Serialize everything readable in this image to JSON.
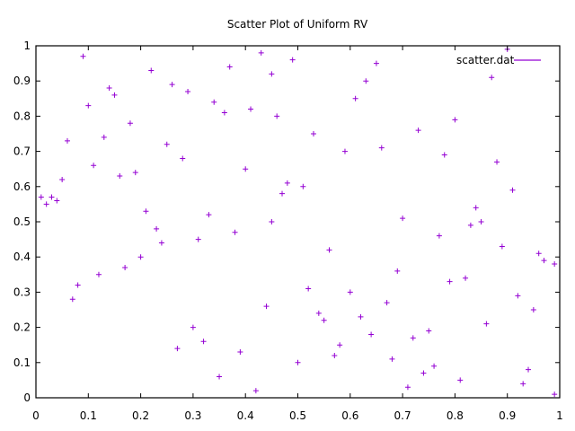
{
  "chart_data": {
    "type": "scatter",
    "title": "Scatter Plot of Uniform RV",
    "xlabel": "",
    "ylabel": "",
    "xlim": [
      0,
      1
    ],
    "ylim": [
      0,
      1
    ],
    "grid": false,
    "legend": {
      "position": "top-right",
      "entries": [
        "scatter.dat"
      ]
    },
    "marker": "plus",
    "color": "#9400d3",
    "xticks": [
      0,
      0.1,
      0.2,
      0.3,
      0.4,
      0.5,
      0.6,
      0.7,
      0.8,
      0.9,
      1
    ],
    "yticks": [
      0,
      0.1,
      0.2,
      0.3,
      0.4,
      0.5,
      0.6,
      0.7,
      0.8,
      0.9,
      1
    ],
    "xtick_labels": [
      "0",
      "0.1",
      "0.2",
      "0.3",
      "0.4",
      "0.5",
      "0.6",
      "0.7",
      "0.8",
      "0.9",
      "1"
    ],
    "ytick_labels": [
      "0",
      "0.1",
      "0.2",
      "0.3",
      "0.4",
      "0.5",
      "0.6",
      "0.7",
      "0.8",
      "0.9",
      "1"
    ],
    "series": [
      {
        "name": "scatter.dat",
        "color": "#9400d3",
        "x": [
          0.13,
          0.86,
          0.47,
          0.22,
          0.69,
          0.05,
          0.94,
          0.38,
          0.61,
          0.27,
          0.78,
          0.52,
          0.09,
          0.33,
          0.71,
          0.18,
          0.96,
          0.44,
          0.63,
          0.02,
          0.57,
          0.88,
          0.24,
          0.41,
          0.75,
          0.12,
          0.66,
          0.35,
          0.91,
          0.49,
          0.07,
          0.83,
          0.29,
          0.58,
          0.16,
          0.99,
          0.42,
          0.73,
          0.21,
          0.54,
          0.87,
          0.31,
          0.64,
          0.11,
          0.79,
          0.46,
          0.03,
          0.68,
          0.37,
          0.92,
          0.25,
          0.56,
          0.81,
          0.14,
          0.48,
          0.72,
          0.34,
          0.97,
          0.19,
          0.62,
          0.43,
          0.85,
          0.08,
          0.53,
          0.76,
          0.28,
          0.67,
          0.15,
          0.89,
          0.39,
          0.59,
          0.04,
          0.82,
          0.45,
          0.23,
          0.74,
          0.36,
          0.95,
          0.51,
          0.17,
          0.65,
          0.32,
          0.84,
          0.06,
          0.55,
          0.77,
          0.26,
          0.93,
          0.4,
          0.6,
          0.1,
          0.7,
          0.3,
          0.9,
          0.2,
          0.5,
          0.8,
          0.01,
          0.99,
          0.45
        ],
        "y": [
          0.74,
          0.21,
          0.58,
          0.93,
          0.36,
          0.62,
          0.08,
          0.47,
          0.85,
          0.14,
          0.69,
          0.31,
          0.97,
          0.52,
          0.03,
          0.78,
          0.41,
          0.26,
          0.9,
          0.55,
          0.12,
          0.67,
          0.44,
          0.82,
          0.19,
          0.35,
          0.71,
          0.06,
          0.59,
          0.96,
          0.28,
          0.49,
          0.87,
          0.15,
          0.63,
          0.38,
          0.02,
          0.76,
          0.53,
          0.24,
          0.91,
          0.45,
          0.18,
          0.66,
          0.33,
          0.8,
          0.57,
          0.11,
          0.94,
          0.29,
          0.72,
          0.42,
          0.05,
          0.88,
          0.61,
          0.17,
          0.84,
          0.39,
          0.64,
          0.23,
          0.98,
          0.5,
          0.32,
          0.75,
          0.09,
          0.68,
          0.27,
          0.86,
          0.43,
          0.13,
          0.7,
          0.56,
          0.34,
          0.92,
          0.48,
          0.07,
          0.81,
          0.25,
          0.6,
          0.37,
          0.95,
          0.16,
          0.54,
          0.73,
          0.22,
          0.46,
          0.89,
          0.04,
          0.65,
          0.3,
          0.83,
          0.51,
          0.2,
          0.99,
          0.4,
          0.1,
          0.79,
          0.57,
          0.01,
          0.5
        ]
      }
    ]
  }
}
